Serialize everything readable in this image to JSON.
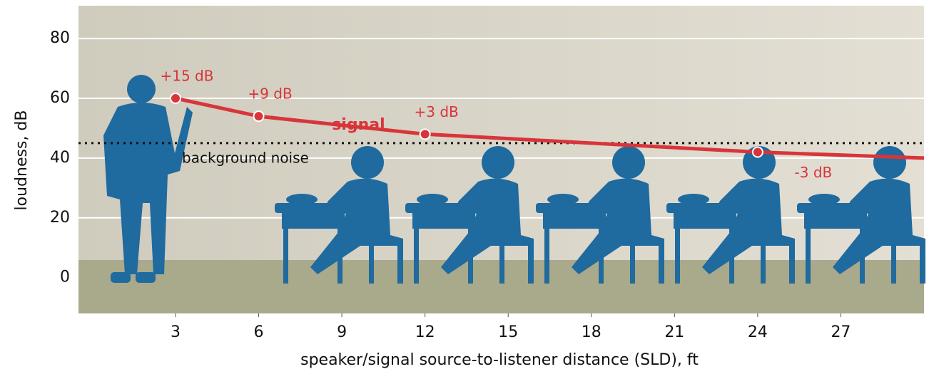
{
  "chart_data": {
    "type": "line",
    "xlabel": "speaker/signal source-to-listener distance (SLD), ft",
    "ylabel": "loudness, dB",
    "series": [
      {
        "name": "signal",
        "color": "#d8353a",
        "x": [
          3,
          6,
          12,
          24,
          30
        ],
        "values": [
          60,
          54,
          48,
          42,
          40
        ]
      }
    ],
    "reference_line": {
      "name": "background noise",
      "value": 45,
      "color": "#111111"
    },
    "annotations": [
      {
        "text": "+15 dB",
        "x": 3,
        "y": 60
      },
      {
        "text": "+9 dB",
        "x": 6,
        "y": 54
      },
      {
        "text": "+3 dB",
        "x": 12,
        "y": 48
      },
      {
        "text": "-3 dB",
        "x": 24,
        "y": 42
      }
    ],
    "xlim": [
      -0.5,
      30
    ],
    "xticks": [
      3,
      6,
      9,
      12,
      15,
      18,
      21,
      24,
      27
    ],
    "ylim": [
      -12,
      91
    ],
    "yticks": [
      0,
      20,
      40,
      60,
      80
    ],
    "grid": true
  }
}
